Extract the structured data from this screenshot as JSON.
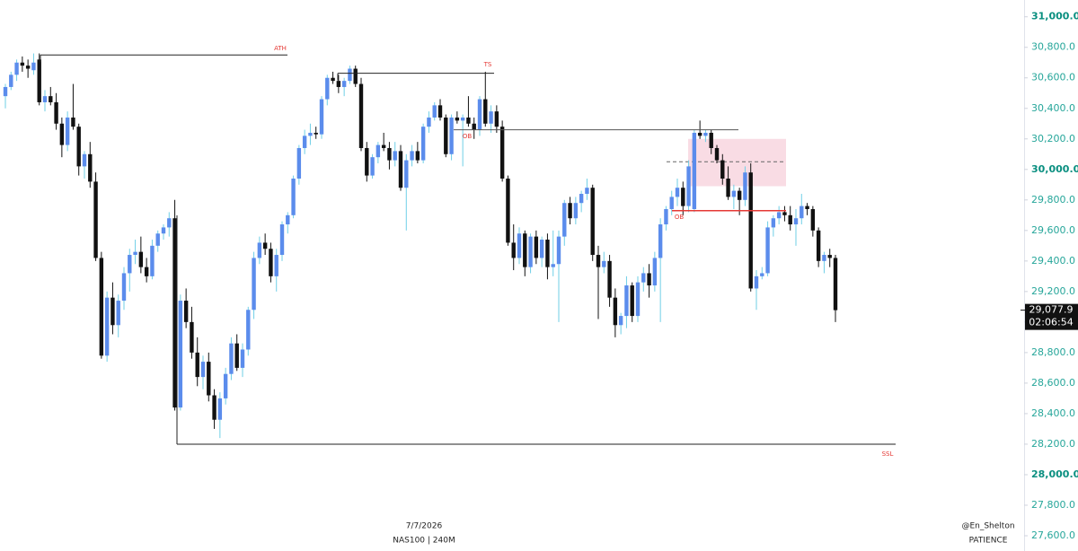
{
  "chart_data": {
    "type": "candlestick",
    "symbol": "NAS100 | 240M",
    "date": "7/7/2026",
    "author": "@En_Shelton",
    "caption": "PATIENCE",
    "up_color": "#5b8cec",
    "up_wick_color": "#6fcfe6",
    "down_color": "#111111",
    "ylim": [
      27500,
      31110
    ],
    "yticks": [
      {
        "value": 27600,
        "label": "27,600.0"
      },
      {
        "value": 27800,
        "label": "27,800.0"
      },
      {
        "value": 28000,
        "label": "28,000.0"
      },
      {
        "value": 28200,
        "label": "28,200.0"
      },
      {
        "value": 28400,
        "label": "28,400.0"
      },
      {
        "value": 28600,
        "label": "28,600.0"
      },
      {
        "value": 28800,
        "label": "28,800.0"
      },
      {
        "value": 29000,
        "label": "29,000.0"
      },
      {
        "value": 29200,
        "label": "29,200.0"
      },
      {
        "value": 29400,
        "label": "29,400.0"
      },
      {
        "value": 29600,
        "label": "29,600.0"
      },
      {
        "value": 29800,
        "label": "29,800.0"
      },
      {
        "value": 30000,
        "label": "30,000.0"
      },
      {
        "value": 30200,
        "label": "30,200.0"
      },
      {
        "value": 30400,
        "label": "30,400.0"
      },
      {
        "value": 30600,
        "label": "30,600.0"
      },
      {
        "value": 30800,
        "label": "30,800.0"
      },
      {
        "value": 31000,
        "label": "31,000.0"
      }
    ],
    "last_price": {
      "value": 29077.9,
      "label": "29,077.9"
    },
    "countdown": "02:06:54",
    "levels": [
      {
        "label": "ATH",
        "value": 30750,
        "line_color": "#222222",
        "label_color": "#e53935"
      },
      {
        "label": "TS",
        "value": 30630,
        "line_color": "#222222",
        "label_color": "#e53935"
      },
      {
        "label": "OB",
        "value": 30260,
        "line_color": "#555555",
        "label_color": "#e53935"
      },
      {
        "label": "OB",
        "value": 29730,
        "line_color": "#e53935",
        "label_color": "#e53935"
      },
      {
        "label": "SSL",
        "value": 28200,
        "line_color": "#222222",
        "label_color": "#e53935"
      }
    ],
    "zone": {
      "top": 30200,
      "bottom": 29890,
      "mid": 30050,
      "color": "#f9dce4"
    },
    "ohlc": [
      [
        30480,
        30560,
        30400,
        30540
      ],
      [
        30540,
        30640,
        30520,
        30620
      ],
      [
        30620,
        30720,
        30580,
        30700
      ],
      [
        30700,
        30740,
        30640,
        30680
      ],
      [
        30680,
        30720,
        30600,
        30660
      ],
      [
        30650,
        30760,
        30620,
        30700
      ],
      [
        30720,
        30760,
        30420,
        30440
      ],
      [
        30440,
        30520,
        30380,
        30480
      ],
      [
        30480,
        30540,
        30420,
        30440
      ],
      [
        30440,
        30500,
        30260,
        30300
      ],
      [
        30300,
        30340,
        30080,
        30160
      ],
      [
        30160,
        30380,
        30120,
        30340
      ],
      [
        30340,
        30560,
        30260,
        30280
      ],
      [
        30280,
        30300,
        29960,
        30020
      ],
      [
        30020,
        30120,
        29940,
        30100
      ],
      [
        30100,
        30180,
        29880,
        29920
      ],
      [
        29920,
        29980,
        29400,
        29420
      ],
      [
        29420,
        29460,
        28760,
        28780
      ],
      [
        28780,
        29200,
        28740,
        29160
      ],
      [
        29160,
        29260,
        28920,
        28980
      ],
      [
        28980,
        29180,
        28900,
        29140
      ],
      [
        29140,
        29360,
        29080,
        29320
      ],
      [
        29320,
        29480,
        29200,
        29440
      ],
      [
        29440,
        29540,
        29380,
        29460
      ],
      [
        29460,
        29560,
        29320,
        29360
      ],
      [
        29360,
        29420,
        29260,
        29300
      ],
      [
        29300,
        29540,
        29280,
        29500
      ],
      [
        29500,
        29600,
        29460,
        29580
      ],
      [
        29580,
        29640,
        29540,
        29620
      ],
      [
        29620,
        29720,
        29560,
        29680
      ],
      [
        29680,
        29800,
        28420,
        28440
      ],
      [
        28440,
        29180,
        28420,
        29140
      ],
      [
        29140,
        29220,
        28960,
        29000
      ],
      [
        29000,
        29100,
        28760,
        28800
      ],
      [
        28800,
        28900,
        28580,
        28640
      ],
      [
        28640,
        28780,
        28560,
        28740
      ],
      [
        28740,
        28800,
        28480,
        28520
      ],
      [
        28520,
        28560,
        28300,
        28360
      ],
      [
        28360,
        28540,
        28240,
        28500
      ],
      [
        28500,
        28700,
        28460,
        28660
      ],
      [
        28660,
        28900,
        28620,
        28860
      ],
      [
        28860,
        28920,
        28680,
        28700
      ],
      [
        28700,
        28860,
        28640,
        28820
      ],
      [
        28820,
        29100,
        28780,
        29080
      ],
      [
        29080,
        29460,
        29020,
        29420
      ],
      [
        29420,
        29560,
        29380,
        29520
      ],
      [
        29520,
        29580,
        29440,
        29480
      ],
      [
        29480,
        29520,
        29260,
        29300
      ],
      [
        29300,
        29480,
        29200,
        29440
      ],
      [
        29440,
        29660,
        29400,
        29640
      ],
      [
        29640,
        29720,
        29580,
        29700
      ],
      [
        29700,
        29960,
        29680,
        29940
      ],
      [
        29940,
        30160,
        29900,
        30140
      ],
      [
        30140,
        30260,
        30100,
        30220
      ],
      [
        30220,
        30300,
        30160,
        30240
      ],
      [
        30240,
        30280,
        30200,
        30230
      ],
      [
        30230,
        30480,
        30200,
        30460
      ],
      [
        30460,
        30620,
        30420,
        30600
      ],
      [
        30600,
        30640,
        30560,
        30580
      ],
      [
        30580,
        30620,
        30500,
        30540
      ],
      [
        30540,
        30600,
        30480,
        30580
      ],
      [
        30580,
        30680,
        30560,
        30660
      ],
      [
        30660,
        30680,
        30540,
        30560
      ],
      [
        30560,
        30600,
        30120,
        30140
      ],
      [
        30140,
        30180,
        29920,
        29960
      ],
      [
        29960,
        30100,
        29940,
        30080
      ],
      [
        30080,
        30180,
        30040,
        30160
      ],
      [
        30160,
        30240,
        30120,
        30140
      ],
      [
        30140,
        30180,
        30000,
        30060
      ],
      [
        30060,
        30180,
        30020,
        30120
      ],
      [
        30120,
        30160,
        29860,
        29880
      ],
      [
        29880,
        30100,
        29600,
        30060
      ],
      [
        30060,
        30160,
        30020,
        30120
      ],
      [
        30120,
        30180,
        30040,
        30060
      ],
      [
        30060,
        30300,
        30040,
        30280
      ],
      [
        30280,
        30380,
        30240,
        30340
      ],
      [
        30340,
        30440,
        30320,
        30420
      ],
      [
        30420,
        30460,
        30320,
        30340
      ],
      [
        30340,
        30360,
        30080,
        30100
      ],
      [
        30100,
        30360,
        30060,
        30340
      ],
      [
        30340,
        30380,
        30300,
        30320
      ],
      [
        30320,
        30360,
        30020,
        30340
      ],
      [
        30340,
        30480,
        30280,
        30300
      ],
      [
        30300,
        30340,
        30200,
        30260
      ],
      [
        30260,
        30480,
        30220,
        30460
      ],
      [
        30460,
        30640,
        30280,
        30300
      ],
      [
        30300,
        30420,
        30240,
        30380
      ],
      [
        30380,
        30420,
        30240,
        30280
      ],
      [
        30280,
        30320,
        29920,
        29940
      ],
      [
        29940,
        29960,
        29500,
        29520
      ],
      [
        29520,
        29640,
        29340,
        29420
      ],
      [
        29420,
        29620,
        29380,
        29580
      ],
      [
        29580,
        29600,
        29300,
        29360
      ],
      [
        29360,
        29580,
        29320,
        29560
      ],
      [
        29560,
        29600,
        29380,
        29420
      ],
      [
        29420,
        29560,
        29360,
        29540
      ],
      [
        29540,
        29580,
        29280,
        29360
      ],
      [
        29360,
        29600,
        29300,
        29380
      ],
      [
        29380,
        29600,
        29000,
        29560
      ],
      [
        29560,
        29800,
        29500,
        29780
      ],
      [
        29780,
        29820,
        29640,
        29680
      ],
      [
        29680,
        29820,
        29640,
        29780
      ],
      [
        29780,
        29860,
        29720,
        29840
      ],
      [
        29840,
        29940,
        29800,
        29880
      ],
      [
        29880,
        29900,
        29400,
        29440
      ],
      [
        29440,
        29500,
        29020,
        29360
      ],
      [
        29360,
        29460,
        29320,
        29400
      ],
      [
        29400,
        29440,
        29100,
        29160
      ],
      [
        29160,
        29220,
        28900,
        28980
      ],
      [
        28980,
        29060,
        28920,
        29040
      ],
      [
        29040,
        29300,
        28960,
        29240
      ],
      [
        29240,
        29260,
        29000,
        29040
      ],
      [
        29040,
        29300,
        29000,
        29260
      ],
      [
        29260,
        29360,
        29200,
        29320
      ],
      [
        29320,
        29380,
        29160,
        29240
      ],
      [
        29240,
        29460,
        29200,
        29420
      ],
      [
        29420,
        29680,
        29000,
        29640
      ],
      [
        29640,
        29760,
        29600,
        29740
      ],
      [
        29740,
        29860,
        29700,
        29820
      ],
      [
        29820,
        29940,
        29760,
        29880
      ],
      [
        29880,
        29920,
        29700,
        29760
      ],
      [
        29760,
        30060,
        29720,
        30020
      ],
      [
        29740,
        30260,
        29720,
        30240
      ],
      [
        30240,
        30320,
        30200,
        30220
      ],
      [
        30220,
        30260,
        30180,
        30240
      ],
      [
        30240,
        30260,
        30100,
        30140
      ],
      [
        30140,
        30160,
        30040,
        30060
      ],
      [
        30060,
        30100,
        29900,
        29940
      ],
      [
        29940,
        30020,
        29800,
        29820
      ],
      [
        29820,
        29900,
        29740,
        29860
      ],
      [
        29860,
        29880,
        29700,
        29800
      ],
      [
        29800,
        30020,
        29760,
        29980
      ],
      [
        29980,
        30040,
        29200,
        29220
      ],
      [
        29220,
        29340,
        29080,
        29300
      ],
      [
        29300,
        29360,
        29280,
        29320
      ],
      [
        29320,
        29660,
        29300,
        29620
      ],
      [
        29620,
        29700,
        29560,
        29680
      ],
      [
        29680,
        29760,
        29640,
        29720
      ],
      [
        29720,
        29760,
        29660,
        29700
      ],
      [
        29700,
        29760,
        29600,
        29640
      ],
      [
        29640,
        29740,
        29500,
        29680
      ],
      [
        29680,
        29840,
        29640,
        29760
      ],
      [
        29760,
        29780,
        29700,
        29740
      ],
      [
        29740,
        29760,
        29560,
        29600
      ],
      [
        29600,
        29620,
        29360,
        29400
      ],
      [
        29400,
        29460,
        29320,
        29440
      ],
      [
        29440,
        29480,
        29360,
        29420
      ],
      [
        29420,
        29440,
        29000,
        29077.9
      ]
    ]
  }
}
